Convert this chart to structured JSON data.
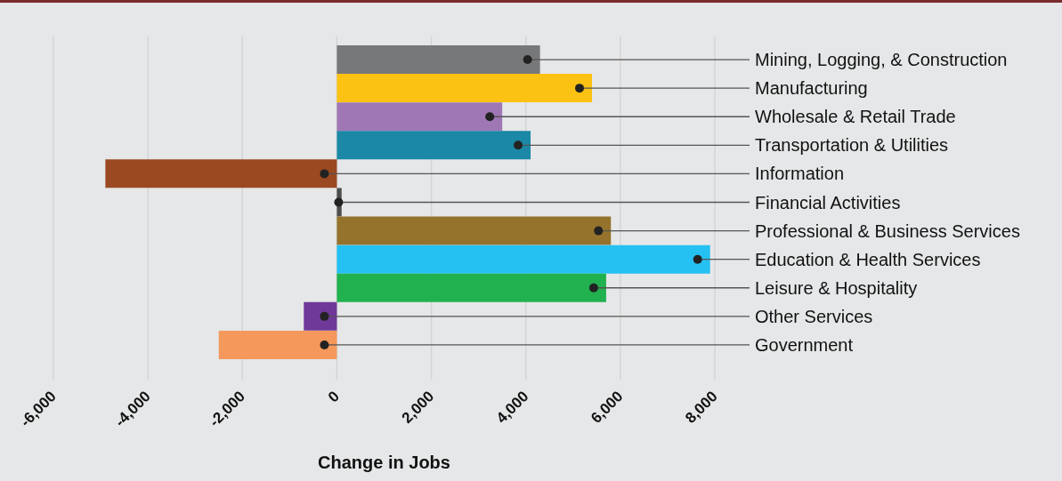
{
  "chart_data": {
    "type": "bar",
    "orientation": "horizontal",
    "xlabel": "Change in Jobs",
    "categories": [
      "Mining, Logging, & Construction",
      "Manufacturing",
      "Wholesale & Retail Trade",
      "Transportation & Utilities",
      "Information",
      "Financial Activities",
      "Professional & Business Services",
      "Education & Health Services",
      "Leisure & Hospitality",
      "Other Services",
      "Government"
    ],
    "values": [
      4300,
      5400,
      3500,
      4100,
      -4900,
      100,
      5800,
      7900,
      5700,
      -700,
      -2500
    ],
    "colors": [
      "#777879",
      "#fcc213",
      "#a077b5",
      "#1a88a6",
      "#9b4921",
      "#4d4d4d",
      "#95732c",
      "#25c1f2",
      "#21b14f",
      "#6e3998",
      "#f4985b"
    ],
    "xlim": [
      -6000,
      8000
    ],
    "xticks": [
      {
        "value": -6000,
        "label": "-6,000"
      },
      {
        "value": -4000,
        "label": "-4,000"
      },
      {
        "value": -2000,
        "label": "-2,000"
      },
      0,
      {
        "value": 2000,
        "label": "2,000"
      },
      {
        "value": 4000,
        "label": "4,000"
      },
      {
        "value": 6000,
        "label": "6,000"
      },
      {
        "value": 8000,
        "label": "8,000"
      }
    ],
    "grid": "x",
    "legend": false
  }
}
